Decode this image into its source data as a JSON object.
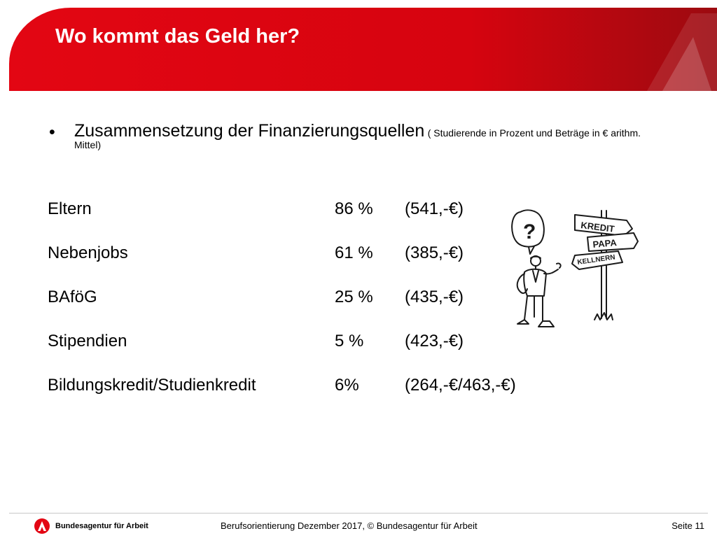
{
  "slide": {
    "title": "Wo kommt das Geld her?",
    "bullet_main": "Zusammensetzung der Finanzierungsquellen",
    "bullet_note": "( Studierende in Prozent und Beträge in € arithm. Mittel)",
    "rows": [
      {
        "label": "Eltern",
        "percent": "86 %",
        "amount": "(541,-€)"
      },
      {
        "label": "Nebenjobs",
        "percent": "61 %",
        "amount": "(385,-€)"
      },
      {
        "label": "BAföG",
        "percent": "25 %",
        "amount": "(435,-€)"
      },
      {
        "label": "Stipendien",
        "percent": "5 %",
        "amount": "(423,-€)"
      },
      {
        "label": "Bildungskredit/Studienkredit",
        "percent": "6%",
        "amount": "(264,-€/463,-€)"
      }
    ],
    "cartoon": {
      "question_mark": "?",
      "signs": [
        "KREDIT",
        "PAPA",
        "KELLNERN"
      ]
    }
  },
  "footer": {
    "org_name": "Bundesagentur für Arbeit",
    "center": "Berufsorientierung Dezember 2017, © Bundesagentur für Arbeit",
    "page": "Seite 11"
  },
  "colors": {
    "brand_red": "#e30613",
    "brand_dark_red": "#9c0a10"
  }
}
